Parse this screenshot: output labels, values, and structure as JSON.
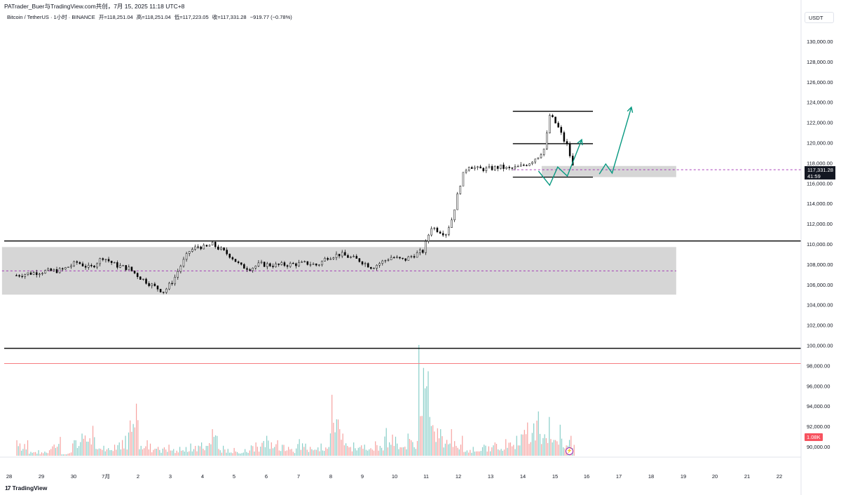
{
  "header": {
    "credit": "PATrader_Buer与TradingView.com共创，7月 15, 2025 11:18 UTC+8",
    "symbol": "Bitcoin / TetherUS · 1小时 · BINANCE",
    "open_label": "开=",
    "open_value": "118,251.04",
    "high_label": "高=",
    "high_value": "118,251.04",
    "low_label": "低=",
    "low_value": "117,223.05",
    "close_label": "收=",
    "close_value": "117,331.28",
    "change": "−919.77 (−0.78%)"
  },
  "currency": "USDT",
  "last_price": "117,331.28",
  "countdown": "41:59",
  "volume_last": "1.08K",
  "brand": "TradingView",
  "icons": {
    "brand_logo": "tradingview-logo-icon",
    "scroll": "lightning-icon"
  },
  "colors": {
    "up": "#26a69a",
    "down": "#ef5350",
    "zone": "#d1d1d1",
    "line": "#000000",
    "arrow": "#089981",
    "avg": "#9c27b0",
    "support": "#f77c80"
  },
  "chart_data": {
    "type": "candlestick",
    "x_ticks": [
      "28",
      "29",
      "30",
      "7月",
      "2",
      "3",
      "4",
      "5",
      "6",
      "7",
      "8",
      "9",
      "10",
      "11",
      "12",
      "13",
      "14",
      "15",
      "16",
      "17",
      "18",
      "19",
      "20",
      "21",
      "22"
    ],
    "y_ticks": [
      "130,000.00",
      "128,000.00",
      "126,000.00",
      "124,000.00",
      "122,000.00",
      "120,000.00",
      "118,000.00",
      "116,000.00",
      "114,000.00",
      "112,000.00",
      "110,000.00",
      "108,000.00",
      "106,000.00",
      "104,000.00",
      "102,000.00",
      "100,000.00",
      "98,000.00",
      "96,000.00",
      "94,000.00",
      "92,000.00",
      "90,000.00"
    ],
    "ylim": [
      89000,
      131500
    ],
    "price_path": [
      [
        27.9,
        106900
      ],
      [
        28.3,
        107100
      ],
      [
        28.8,
        107300
      ],
      [
        29.3,
        107400
      ],
      [
        29.8,
        108200
      ],
      [
        30.2,
        107600
      ],
      [
        30.6,
        108700
      ],
      [
        31.0,
        107900
      ],
      [
        31.4,
        107600
      ],
      [
        31.8,
        106600
      ],
      [
        32.2,
        105800
      ],
      [
        32.5,
        105300
      ],
      [
        32.8,
        106400
      ],
      [
        33.0,
        107700
      ],
      [
        33.3,
        109300
      ],
      [
        33.6,
        109800
      ],
      [
        33.8,
        109600
      ],
      [
        34.0,
        110000
      ],
      [
        34.3,
        109400
      ],
      [
        34.6,
        108800
      ],
      [
        34.9,
        107800
      ],
      [
        35.2,
        107600
      ],
      [
        35.5,
        108000
      ],
      [
        36.0,
        107900
      ],
      [
        36.5,
        108000
      ],
      [
        37.0,
        108100
      ],
      [
        37.3,
        107900
      ],
      [
        37.6,
        108700
      ],
      [
        38.0,
        109000
      ],
      [
        38.3,
        108700
      ],
      [
        38.6,
        108400
      ],
      [
        39.0,
        107700
      ],
      [
        39.3,
        108200
      ],
      [
        39.6,
        108700
      ],
      [
        40.0,
        108400
      ],
      [
        40.3,
        108900
      ],
      [
        40.6,
        109300
      ],
      [
        40.85,
        111700
      ],
      [
        41.1,
        111300
      ],
      [
        41.3,
        111000
      ],
      [
        41.5,
        112500
      ],
      [
        41.65,
        114500
      ],
      [
        41.8,
        116500
      ],
      [
        42.0,
        117800
      ],
      [
        42.3,
        117400
      ],
      [
        42.6,
        117400
      ],
      [
        43.0,
        117600
      ],
      [
        43.3,
        117400
      ],
      [
        43.6,
        117600
      ],
      [
        43.9,
        118000
      ],
      [
        44.2,
        118700
      ],
      [
        44.4,
        119500
      ],
      [
        44.55,
        122700
      ],
      [
        44.7,
        122100
      ],
      [
        44.85,
        121300
      ],
      [
        45.0,
        120200
      ],
      [
        45.1,
        119700
      ],
      [
        45.3,
        117300
      ]
    ],
    "volume_relative": [
      0.14,
      0.05,
      0.05,
      0.17,
      0.03,
      0.2,
      0.27,
      0.09,
      0.1,
      0.18,
      0.47,
      0.14,
      0.08,
      0.1,
      0.08,
      0.11,
      0.12,
      0.24,
      0.09,
      0.07,
      0.06,
      0.12,
      0.18,
      0.14,
      0.08,
      0.15,
      0.08,
      0.11,
      0.55,
      0.2,
      0.12,
      0.1,
      0.13,
      0.25,
      0.11,
      0.2,
      1.0,
      0.35,
      0.24,
      0.18,
      0.08,
      0.1,
      0.12,
      0.15,
      0.18,
      0.3,
      0.4,
      0.35,
      0.28,
      0.18,
      0.18
    ],
    "annotations": {
      "horizontal_lines": [
        110300,
        99700
      ],
      "support_line": 98200,
      "range_lines": [
        123100,
        119900,
        116600
      ],
      "range_x": [
        43.4,
        45.9
      ],
      "zones": [
        {
          "x": [
            27.45,
            48.5
          ],
          "y": [
            105000,
            109700
          ],
          "mid": 107350
        },
        {
          "x": [
            44.3,
            48.5
          ],
          "y": [
            116600,
            117700
          ]
        }
      ],
      "last_price_level": 117331.28,
      "projection_paths": [
        [
          [
            44.2,
            117200
          ],
          [
            44.55,
            115800
          ],
          [
            44.8,
            117600
          ],
          [
            45.1,
            116700
          ],
          [
            45.55,
            120300
          ]
        ],
        [
          [
            46.1,
            116900
          ],
          [
            46.3,
            117900
          ],
          [
            46.5,
            117000
          ],
          [
            47.1,
            123500
          ]
        ]
      ]
    }
  }
}
